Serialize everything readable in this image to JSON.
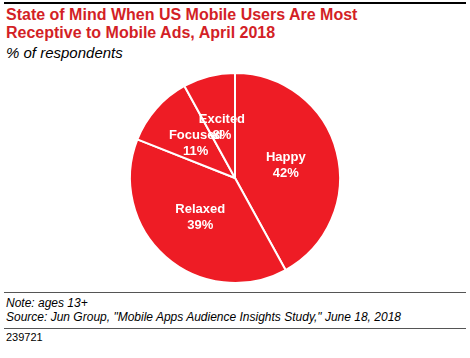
{
  "chart_data": {
    "type": "pie",
    "title": "State of Mind When US Mobile Users Are Most Receptive to Mobile Ads, April 2018",
    "subtitle": "% of respondents",
    "categories": [
      "Happy",
      "Relaxed",
      "Focused",
      "Excited"
    ],
    "values": [
      42,
      39,
      11,
      8
    ],
    "value_labels": [
      "42%",
      "39%",
      "11%",
      "8%"
    ],
    "data_labels": true,
    "color": "#ee1c25",
    "note": "Note: ages 13+",
    "source": "Source: Jun Group, \"Mobile Apps Audience Insights Study,\" June 18, 2018",
    "chart_id": "239721"
  }
}
